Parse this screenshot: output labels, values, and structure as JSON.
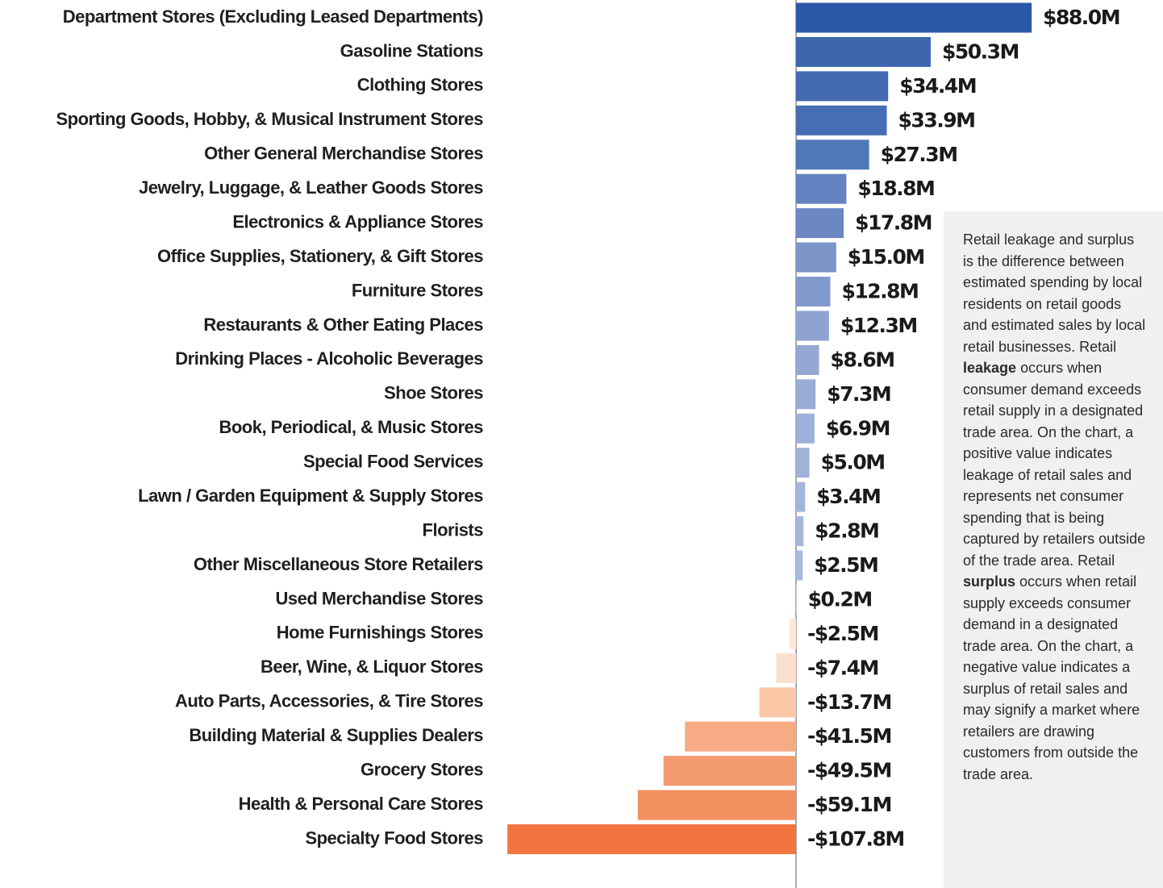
{
  "chart_data": {
    "type": "barh",
    "categories": [
      "Department Stores (Excluding Leased Departments)",
      "Gasoline Stations",
      "Clothing Stores",
      "Sporting Goods, Hobby, & Musical Instrument Stores",
      "Other General Merchandise Stores",
      "Jewelry, Luggage, & Leather Goods Stores",
      "Electronics & Appliance Stores",
      "Office Supplies, Stationery, & Gift Stores",
      "Furniture Stores",
      "Restaurants & Other Eating Places",
      "Drinking Places - Alcoholic Beverages",
      "Shoe Stores",
      "Book, Periodical, & Music Stores",
      "Special Food Services",
      "Lawn / Garden Equipment & Supply Stores",
      "Florists",
      "Other Miscellaneous Store Retailers",
      "Used Merchandise Stores",
      "Home Furnishings Stores",
      "Beer, Wine, & Liquor Stores",
      "Auto Parts, Accessories, & Tire Stores",
      "Building Material & Supplies Dealers",
      "Grocery Stores",
      "Health & Personal Care Stores",
      "Specialty Food Stores"
    ],
    "values": [
      88.0,
      50.3,
      34.4,
      33.9,
      27.3,
      18.8,
      17.8,
      15.0,
      12.8,
      12.3,
      8.6,
      7.3,
      6.9,
      5.0,
      3.4,
      2.8,
      2.5,
      0.2,
      -2.5,
      -7.4,
      -13.7,
      -41.5,
      -49.5,
      -59.1,
      -107.8
    ],
    "value_labels": [
      "$88.0M",
      "$50.3M",
      "$34.4M",
      "$33.9M",
      "$27.3M",
      "$18.8M",
      "$17.8M",
      "$15.0M",
      "$12.8M",
      "$12.3M",
      "$8.6M",
      "$7.3M",
      "$6.9M",
      "$5.0M",
      "$3.4M",
      "$2.8M",
      "$2.5M",
      "$0.2M",
      "-$2.5M",
      "-$7.4M",
      "-$13.7M",
      "-$41.5M",
      "-$49.5M",
      "-$59.1M",
      "-$107.8M"
    ],
    "colors": [
      "#2c58a8",
      "#3d66ae",
      "#4369b0",
      "#476db3",
      "#5077b8",
      "#6482c0",
      "#6a87c2",
      "#7b95c9",
      "#8299cb",
      "#8ea3d0",
      "#94a8d3",
      "#99acd5",
      "#9db0d7",
      "#a0b2d8",
      "#a3b5da",
      "#a5b7db",
      "#a7b9dc",
      "#a9badc",
      "#fde6da",
      "#fce0cf",
      "#fbc8a8",
      "#f6ab85",
      "#f49a70",
      "#f3905f",
      "#f27541"
    ],
    "note": [
      "Retail leakage and surplus is the difference between estimated spending by local residents on retail goods and estimated sales by local retail businesses. Retail ",
      "leakage",
      " occurs when consumer demand exceeds retail supply in a designated trade area. On the chart, a positive value indicates leakage of retail sales and represents net consumer spending that is being captured by retailers outside of the trade area. Retail ",
      "surplus",
      " occurs when retail supply exceeds consumer demand in a designated trade area. On the chart, a negative value indicates a surplus of retail sales and may signify a market where retailers are drawing customers from outside the trade area."
    ]
  }
}
